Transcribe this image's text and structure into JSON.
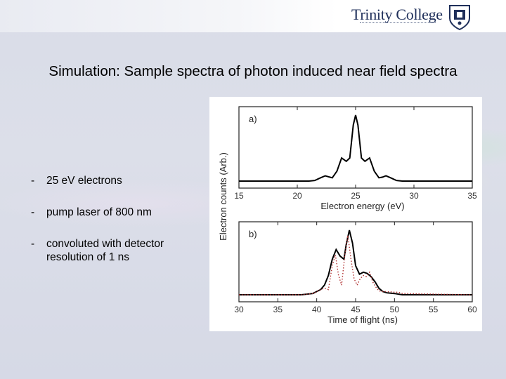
{
  "header": {
    "logo_text": "Trinity College",
    "crest_icon": "college-crest-icon"
  },
  "slide": {
    "title": "Simulation: Sample spectra of photon induced near field spectra",
    "bullets": [
      {
        "dash": "-",
        "text": "25 eV electrons"
      },
      {
        "dash": "-",
        "text": "pump laser of 800 nm"
      },
      {
        "dash": "-",
        "text": "convoluted with detector resolution of 1 ns"
      }
    ]
  },
  "figure": {
    "ylabel": "Electron counts (Arb.)",
    "chart_data": [
      {
        "type": "line",
        "panel_label": "a)",
        "xlabel": "Electron energy (eV)",
        "xlim": [
          15,
          35
        ],
        "xticks": [
          15,
          20,
          25,
          30,
          35
        ],
        "series": [
          {
            "x": [
              15,
              21,
              21.5,
              22,
              22.4,
              22.8,
              23,
              23.4,
              23.8,
              24.2,
              24.5,
              24.8,
              25,
              25.2,
              25.5,
              25.8,
              26.2,
              26.6,
              27,
              27.3,
              27.6,
              28,
              28.5,
              29,
              35
            ],
            "y": [
              0,
              0,
              0.01,
              0.05,
              0.08,
              0.06,
              0.05,
              0.15,
              0.35,
              0.3,
              0.35,
              0.85,
              1.0,
              0.85,
              0.35,
              0.3,
              0.35,
              0.15,
              0.05,
              0.06,
              0.08,
              0.05,
              0.01,
              0,
              0
            ]
          }
        ]
      },
      {
        "type": "line",
        "panel_label": "b)",
        "xlabel": "Time of flight (ns)",
        "xlim": [
          30,
          60
        ],
        "xticks": [
          30,
          35,
          40,
          45,
          50,
          55,
          60
        ],
        "series": [
          {
            "style": "solid",
            "color": "#000000",
            "x": [
              30,
              38,
              39.5,
              40.5,
              41,
              41.5,
              42,
              42.5,
              43,
              43.5,
              43.8,
              44.2,
              44.6,
              45,
              45.5,
              46,
              46.5,
              47,
              47.5,
              48,
              48.5,
              49,
              50,
              51,
              60
            ],
            "y": [
              0,
              0,
              0.02,
              0.08,
              0.15,
              0.3,
              0.55,
              0.7,
              0.6,
              0.55,
              0.78,
              1.0,
              0.8,
              0.45,
              0.32,
              0.35,
              0.33,
              0.28,
              0.2,
              0.1,
              0.05,
              0.03,
              0.02,
              0,
              0
            ]
          },
          {
            "style": "dotted",
            "color": "#b03030",
            "x": [
              30,
              38,
              39.5,
              40.5,
              41,
              41.5,
              42,
              42.4,
              42.8,
              43.2,
              43.6,
              44,
              44.4,
              44.8,
              45.2,
              45.6,
              46,
              46.4,
              46.8,
              47.2,
              47.6,
              48,
              48.5,
              49,
              50,
              50.5,
              51,
              60
            ],
            "y": [
              0,
              0,
              0.02,
              0.08,
              0.1,
              0.08,
              0.45,
              0.62,
              0.3,
              0.15,
              0.6,
              0.92,
              0.55,
              0.25,
              0.15,
              0.25,
              0.3,
              0.28,
              0.35,
              0.2,
              0.12,
              0.06,
              0.05,
              0.05,
              0.04,
              0.04,
              0.02,
              0
            ]
          }
        ]
      }
    ]
  }
}
